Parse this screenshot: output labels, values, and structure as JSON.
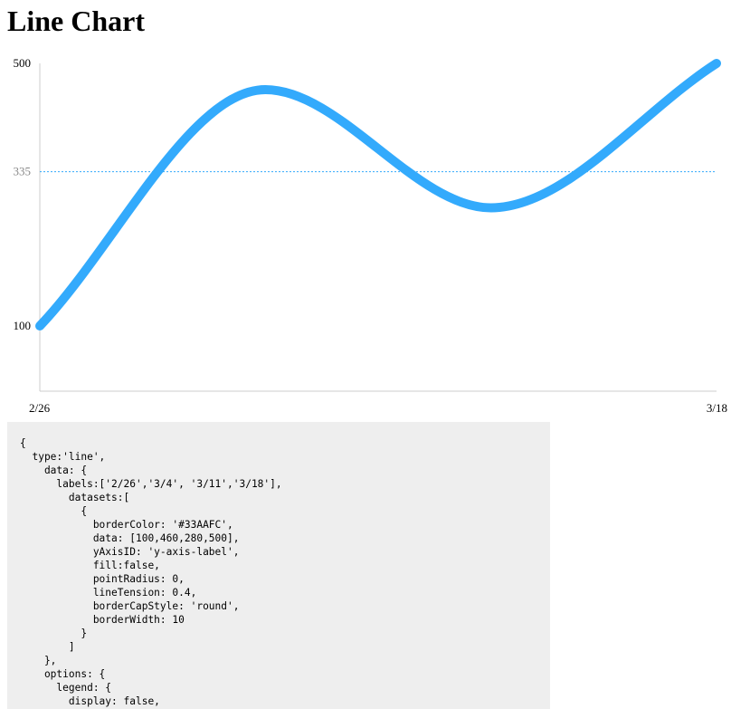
{
  "page": {
    "title": "Line Chart"
  },
  "chart_data": {
    "type": "line",
    "title": "",
    "xlabel": "",
    "ylabel": "",
    "categories": [
      "2/26",
      "3/4",
      "3/11",
      "3/18"
    ],
    "visible_x_tick_labels": [
      "2/26",
      "3/18"
    ],
    "series": [
      {
        "values": [
          100,
          460,
          280,
          500
        ],
        "color": "#33AAFC"
      }
    ],
    "y_tick_labels": [
      500,
      335,
      100
    ],
    "ylim": [
      0,
      500
    ],
    "reference_line": {
      "value": 335,
      "color": "#33AAFC",
      "style": "dotted"
    },
    "legend": "none",
    "grid": false,
    "line_tension": 0.4,
    "line_cap": "round"
  },
  "code": {
    "text": "{\n  type:'line',\n    data: {\n      labels:['2/26','3/4', '3/11','3/18'],\n        datasets:[\n          {\n            borderColor: '#33AAFC',\n            data: [100,460,280,500],\n            yAxisID: 'y-axis-label',\n            fill:false,\n            pointRadius: 0,\n            lineTension: 0.4,\n            borderCapStyle: 'round',\n            borderWidth: 10\n          }\n        ]\n    },\n    options: {\n      legend: {\n        display: false,"
  }
}
